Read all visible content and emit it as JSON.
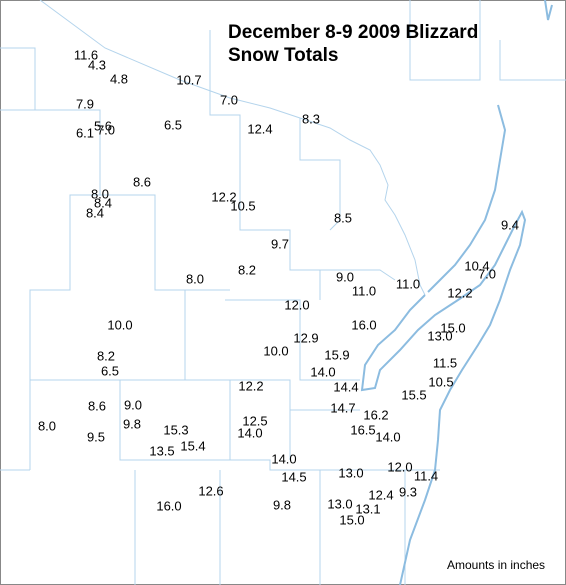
{
  "title": [
    "December 8-9 2009 Blizzard",
    "Snow Totals"
  ],
  "readings": [
    "11.6",
    "4.3",
    "4.8",
    "10.7",
    "7.0",
    "7.9",
    "12.4",
    "8.3",
    "6.1",
    "5.6",
    "7.0",
    "6.5",
    "8.6",
    "8.0",
    "8.4",
    "8.4",
    "12.2",
    "10.5",
    "8.5",
    "9.4",
    "9.7",
    "10.4",
    "7.0",
    "8.2",
    "9.0",
    "11.0",
    "11.0",
    "8.0",
    "12.2",
    "12.0",
    "10.0",
    "16.0",
    "15.0",
    "13.0",
    "12.9",
    "10.0",
    "15.9",
    "8.2",
    "11.5",
    "6.5",
    "14.0",
    "10.5",
    "12.2",
    "14.4",
    "15.5",
    "8.6",
    "9.0",
    "14.7",
    "16.2",
    "9.8",
    "12.5",
    "15.3",
    "8.0",
    "16.5",
    "14.0",
    "14.0",
    "9.5",
    "15.4",
    "13.5",
    "14.0",
    "12.0",
    "13.0",
    "11.4",
    "14.5",
    "12.6",
    "9.3",
    "12.4",
    "16.0",
    "9.8",
    "13.0",
    "13.1",
    "15.0"
  ],
  "footnote": "Amounts in inches"
}
